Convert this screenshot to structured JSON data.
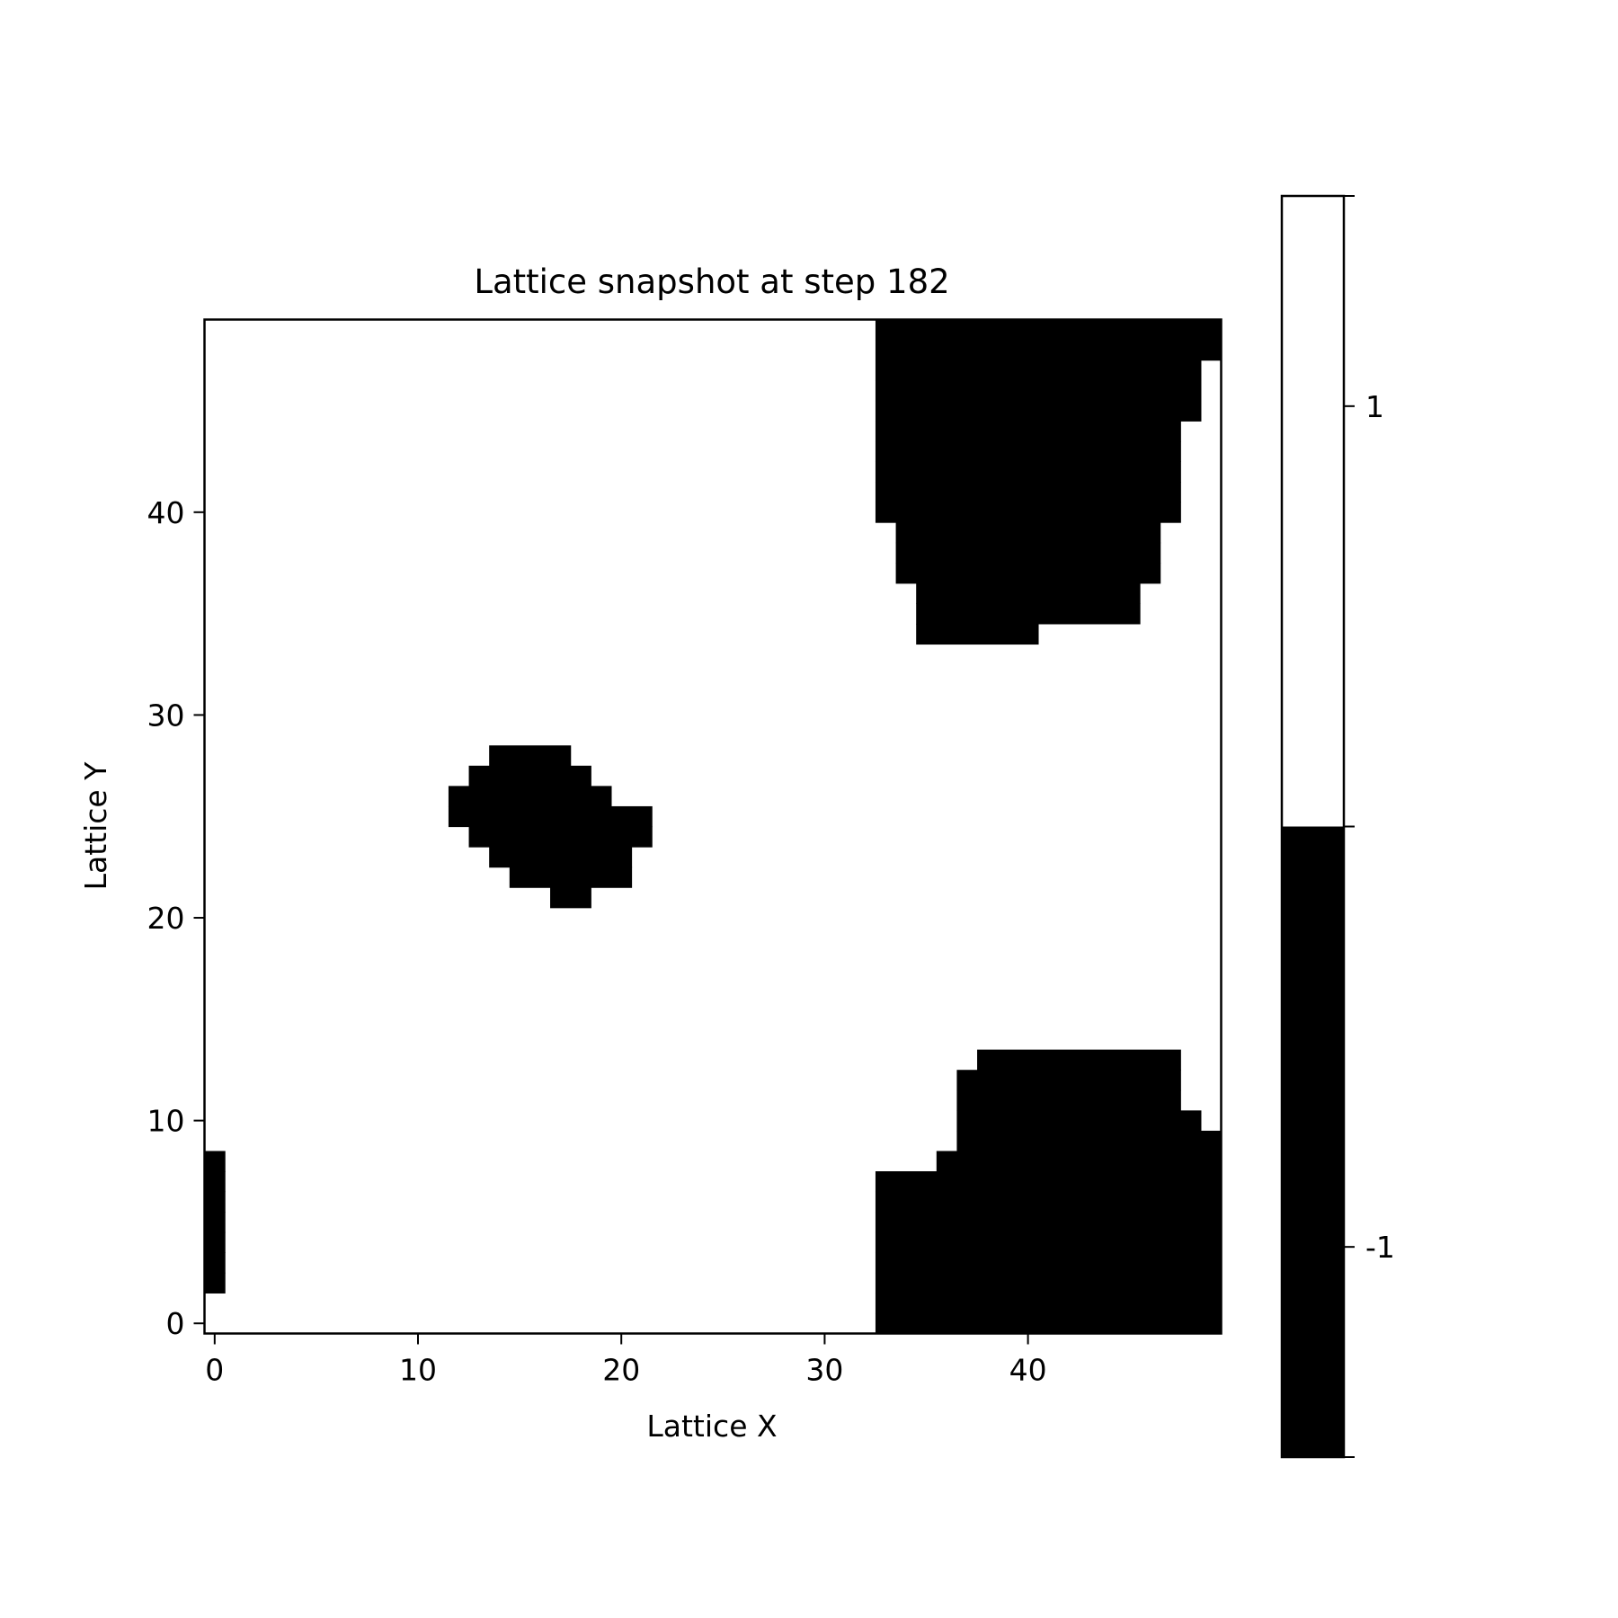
{
  "chart_data": {
    "type": "heatmap",
    "title": "Lattice snapshot at step 182",
    "xlabel": "Lattice X",
    "ylabel": "Lattice Y",
    "xlim": [
      -0.5,
      49.5
    ],
    "ylim": [
      -0.5,
      49.5
    ],
    "x_ticks": [
      0,
      10,
      20,
      30,
      40
    ],
    "y_ticks": [
      0,
      10,
      20,
      30,
      40
    ],
    "grid_size": [
      50,
      50
    ],
    "values_present": [
      -1,
      1
    ],
    "colors": {
      "-1": "#000000",
      "1": "#ffffff"
    },
    "default_value": 1,
    "colorbar": {
      "ticks": [
        1,
        -1
      ],
      "range": [
        -1.5,
        1.5
      ]
    },
    "spin_down_runs": [
      {
        "y": 49,
        "runs": [
          [
            33,
            49
          ]
        ]
      },
      {
        "y": 48,
        "runs": [
          [
            33,
            49
          ]
        ]
      },
      {
        "y": 47,
        "runs": [
          [
            33,
            48
          ]
        ]
      },
      {
        "y": 46,
        "runs": [
          [
            33,
            48
          ]
        ]
      },
      {
        "y": 45,
        "runs": [
          [
            33,
            48
          ]
        ]
      },
      {
        "y": 44,
        "runs": [
          [
            33,
            47
          ]
        ]
      },
      {
        "y": 43,
        "runs": [
          [
            33,
            47
          ]
        ]
      },
      {
        "y": 42,
        "runs": [
          [
            33,
            47
          ]
        ]
      },
      {
        "y": 41,
        "runs": [
          [
            33,
            47
          ]
        ]
      },
      {
        "y": 40,
        "runs": [
          [
            33,
            47
          ]
        ]
      },
      {
        "y": 39,
        "runs": [
          [
            34,
            46
          ]
        ]
      },
      {
        "y": 38,
        "runs": [
          [
            34,
            46
          ]
        ]
      },
      {
        "y": 37,
        "runs": [
          [
            34,
            46
          ]
        ]
      },
      {
        "y": 36,
        "runs": [
          [
            35,
            45
          ]
        ]
      },
      {
        "y": 35,
        "runs": [
          [
            35,
            45
          ]
        ]
      },
      {
        "y": 34,
        "runs": [
          [
            35,
            40
          ]
        ]
      },
      {
        "y": 28,
        "runs": [
          [
            14,
            17
          ]
        ]
      },
      {
        "y": 27,
        "runs": [
          [
            13,
            18
          ]
        ]
      },
      {
        "y": 26,
        "runs": [
          [
            12,
            19
          ]
        ]
      },
      {
        "y": 25,
        "runs": [
          [
            12,
            21
          ]
        ]
      },
      {
        "y": 24,
        "runs": [
          [
            13,
            21
          ]
        ]
      },
      {
        "y": 23,
        "runs": [
          [
            14,
            20
          ]
        ]
      },
      {
        "y": 22,
        "runs": [
          [
            15,
            20
          ]
        ]
      },
      {
        "y": 21,
        "runs": [
          [
            17,
            18
          ]
        ]
      },
      {
        "y": 13,
        "runs": [
          [
            38,
            47
          ]
        ]
      },
      {
        "y": 12,
        "runs": [
          [
            37,
            47
          ]
        ]
      },
      {
        "y": 11,
        "runs": [
          [
            37,
            47
          ]
        ]
      },
      {
        "y": 10,
        "runs": [
          [
            37,
            48
          ]
        ]
      },
      {
        "y": 9,
        "runs": [
          [
            37,
            49
          ]
        ]
      },
      {
        "y": 8,
        "runs": [
          [
            0,
            0
          ],
          [
            36,
            49
          ]
        ]
      },
      {
        "y": 7,
        "runs": [
          [
            0,
            0
          ],
          [
            33,
            49
          ]
        ]
      },
      {
        "y": 6,
        "runs": [
          [
            0,
            0
          ],
          [
            33,
            49
          ]
        ]
      },
      {
        "y": 5,
        "runs": [
          [
            0,
            0
          ],
          [
            33,
            49
          ]
        ]
      },
      {
        "y": 4,
        "runs": [
          [
            0,
            0
          ],
          [
            33,
            49
          ]
        ]
      },
      {
        "y": 3,
        "runs": [
          [
            0,
            0
          ],
          [
            33,
            49
          ]
        ]
      },
      {
        "y": 2,
        "runs": [
          [
            0,
            0
          ],
          [
            33,
            49
          ]
        ]
      },
      {
        "y": 1,
        "runs": [
          [
            33,
            49
          ]
        ]
      },
      {
        "y": 0,
        "runs": [
          [
            33,
            49
          ]
        ]
      }
    ]
  }
}
